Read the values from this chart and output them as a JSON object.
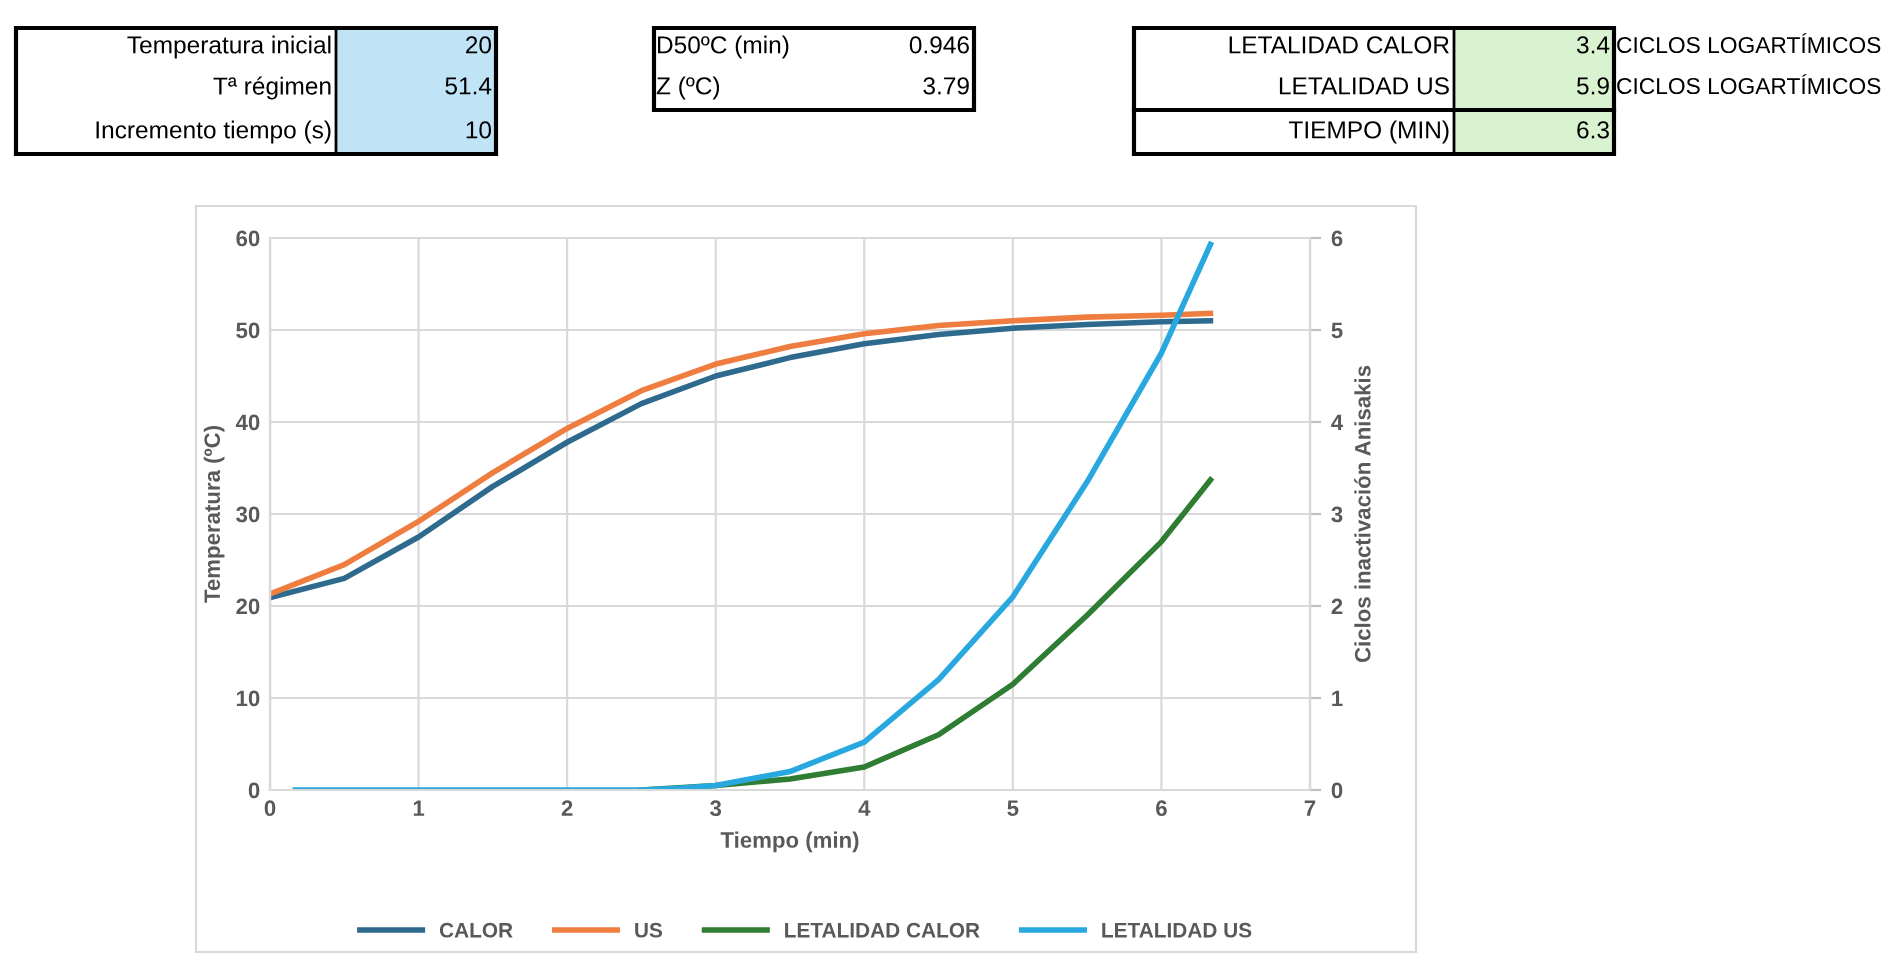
{
  "chart_data": {
    "type": "line",
    "xlabel": "Tiempo (min)",
    "ylabel": "Temperatura (ºC)",
    "y2label": "Ciclos inactivación Anisakis",
    "xlim": [
      0,
      7
    ],
    "xticks": [
      0,
      1,
      2,
      3,
      4,
      5,
      6,
      7
    ],
    "ylim": [
      0,
      60
    ],
    "yticks": [
      0,
      10,
      20,
      30,
      40,
      50,
      60
    ],
    "y2lim": [
      0,
      6
    ],
    "y2ticks": [
      0,
      1,
      2,
      3,
      4,
      5,
      6
    ],
    "grid": true,
    "legend": "bottom",
    "marker": "none",
    "line_style": "solid",
    "x": [
      0,
      0.5,
      1,
      1.5,
      2,
      2.5,
      3,
      3.5,
      4,
      4.5,
      5,
      5.5,
      6,
      6.33
    ],
    "series": [
      {
        "name": "CALOR",
        "color": "#2e6a8e",
        "values": [
          20.9,
          23,
          27.5,
          33,
          37.8,
          42,
          45,
          47,
          48.5,
          49.5,
          50.2,
          50.6,
          50.9,
          51
        ]
      },
      {
        "name": "US",
        "color": "#ee7d3f",
        "values": [
          21.3,
          24.5,
          29.2,
          34.5,
          39.3,
          43.4,
          46.3,
          48.2,
          49.6,
          50.5,
          51,
          51.4,
          51.6,
          51.8
        ]
      },
      {
        "name": "LETALIDAD CALOR",
        "color": "#2e7d32",
        "axis": "y2",
        "x": [
          2.5,
          3,
          3.5,
          4,
          4.5,
          5,
          5.5,
          6,
          6.33
        ],
        "values": [
          0,
          0.05,
          0.12,
          0.25,
          0.6,
          1.15,
          1.9,
          2.7,
          3.37
        ]
      },
      {
        "name": "LETALIDAD US",
        "color": "#29a8e0",
        "axis": "y2",
        "x": [
          0.17,
          1,
          2,
          2.5,
          2.75,
          3,
          3.5,
          4,
          4.5,
          5,
          5.5,
          6,
          6.33
        ],
        "values": [
          0,
          0,
          0,
          0,
          0.02,
          0.05,
          0.2,
          0.52,
          1.2,
          2.1,
          3.35,
          4.75,
          5.93
        ]
      }
    ],
    "annotations": [
      "Temperatura inicial",
      "20",
      "Tª régimen",
      "51.4",
      "Incremento tiempo (s)",
      "10",
      "D50ºC (min)",
      "0.946",
      "Z (ºC)",
      "3.79",
      "LETALIDAD CALOR",
      "3.4",
      "LETALIDAD US",
      "5.9",
      "TIEMPO (MIN)",
      "6.3",
      "CICLOS LOGARTÍMICOS",
      "CICLOS LOGARTÍMICOS"
    ]
  }
}
